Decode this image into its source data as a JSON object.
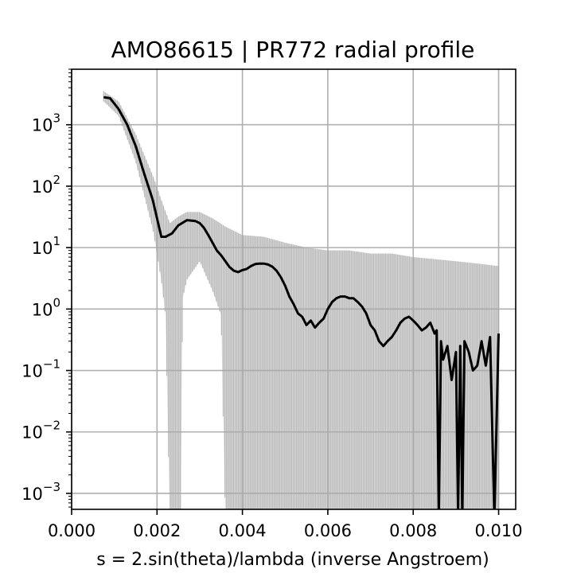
{
  "chart_data": {
    "type": "line",
    "title": "AMO86615 | PR772 radial profile",
    "xlabel": "s = 2.sin(theta)/lambda (inverse Angstroem)",
    "ylabel": "",
    "xlim": [
      0.0,
      0.0104
    ],
    "ylim": [
      0.00055,
      8000
    ],
    "yscale": "log",
    "grid": true,
    "legend": "none",
    "x_ticks": [
      {
        "value": 0.0,
        "label": "0.000"
      },
      {
        "value": 0.002,
        "label": "0.002"
      },
      {
        "value": 0.004,
        "label": "0.004"
      },
      {
        "value": 0.006,
        "label": "0.006"
      },
      {
        "value": 0.008,
        "label": "0.008"
      },
      {
        "value": 0.01,
        "label": "0.010"
      }
    ],
    "y_ticks": [
      {
        "value": 0.001,
        "base": "10",
        "exp": "−3"
      },
      {
        "value": 0.01,
        "base": "10",
        "exp": "−2"
      },
      {
        "value": 0.1,
        "base": "10",
        "exp": "−1"
      },
      {
        "value": 1,
        "base": "10",
        "exp": "0"
      },
      {
        "value": 10,
        "base": "10",
        "exp": "1"
      },
      {
        "value": 100,
        "base": "10",
        "exp": "2"
      },
      {
        "value": 1000,
        "base": "10",
        "exp": "3"
      }
    ],
    "colors": {
      "line": "#000000",
      "errorbar": "#a9a9a9",
      "grid": "#b0b0b0"
    },
    "series": [
      {
        "role": "mean",
        "x": [
          0.00075,
          0.0009,
          0.0011,
          0.0013,
          0.0015,
          0.0017,
          0.0019,
          0.002,
          0.0021,
          0.0022,
          0.00235,
          0.0025,
          0.0027,
          0.0029,
          0.003,
          0.0031,
          0.0032,
          0.0033,
          0.0034,
          0.0035,
          0.0036,
          0.0037,
          0.0038,
          0.0039,
          0.004,
          0.0041,
          0.0042,
          0.0043,
          0.0044,
          0.0045,
          0.0046,
          0.0047,
          0.0048,
          0.0049,
          0.005,
          0.0051,
          0.0052,
          0.0053,
          0.0054,
          0.0055,
          0.0056,
          0.0057,
          0.0058,
          0.0059,
          0.006,
          0.0061,
          0.0062,
          0.0063,
          0.0064,
          0.0065,
          0.0066,
          0.0067,
          0.0068,
          0.0069,
          0.007,
          0.0071,
          0.0072,
          0.0073,
          0.0074,
          0.0075,
          0.0076,
          0.0077,
          0.0078,
          0.0079,
          0.008,
          0.0081,
          0.0082,
          0.0083,
          0.0084,
          0.0085,
          0.00855,
          0.0086,
          0.00865,
          0.0087,
          0.0088,
          0.0089,
          0.009,
          0.00905,
          0.0091,
          0.00915,
          0.0092,
          0.0093,
          0.0094,
          0.0095,
          0.0096,
          0.0097,
          0.0098,
          0.0099,
          0.01
        ],
        "y": [
          2800,
          2700,
          1800,
          1000,
          450,
          160,
          60,
          30,
          15,
          15,
          17,
          23,
          28,
          27,
          25,
          21,
          16,
          12,
          9,
          7.5,
          6,
          4.8,
          4.2,
          4.0,
          4.3,
          4.5,
          5.0,
          5.4,
          5.5,
          5.5,
          5.3,
          4.9,
          4.2,
          3.3,
          2.4,
          1.6,
          1.2,
          0.85,
          0.75,
          0.55,
          0.65,
          0.5,
          0.6,
          0.7,
          1.0,
          1.3,
          1.5,
          1.6,
          1.6,
          1.5,
          1.5,
          1.3,
          1.1,
          0.85,
          0.55,
          0.45,
          0.3,
          0.25,
          0.3,
          0.35,
          0.45,
          0.6,
          0.7,
          0.75,
          0.65,
          0.55,
          0.45,
          0.5,
          0.6,
          0.4,
          0.45,
          0.0004,
          0.3,
          0.15,
          0.25,
          0.07,
          0.2,
          0.0004,
          0.25,
          0.0004,
          0.3,
          0.2,
          0.1,
          0.12,
          0.3,
          0.12,
          0.35,
          0.0004,
          0.4
        ]
      },
      {
        "role": "errorband-upper",
        "x": [
          0.00075,
          0.0011,
          0.0015,
          0.0019,
          0.0021,
          0.0023,
          0.0025,
          0.0027,
          0.003,
          0.0033,
          0.0036,
          0.004,
          0.0045,
          0.005,
          0.0055,
          0.006,
          0.0065,
          0.007,
          0.0075,
          0.008,
          0.0085,
          0.009,
          0.0095,
          0.01
        ],
        "y": [
          3500,
          2400,
          700,
          150,
          60,
          25,
          32,
          38,
          38,
          30,
          22,
          16,
          15,
          12,
          10,
          9,
          9,
          8,
          8,
          7,
          6.5,
          6,
          5.5,
          5
        ]
      },
      {
        "role": "errorband-lower",
        "x": [
          0.00075,
          0.0011,
          0.0015,
          0.0019,
          0.002,
          0.0021,
          0.0022,
          0.0023,
          0.0024,
          0.00255,
          0.0026,
          0.0027,
          0.003,
          0.0033,
          0.0035,
          0.0036,
          0.01
        ],
        "y": [
          2400,
          1400,
          250,
          20,
          8,
          3,
          0.8,
          0.0004,
          0.0004,
          0.0004,
          1.5,
          3,
          6,
          2,
          0.8,
          0.0004,
          0.0004
        ]
      }
    ]
  }
}
